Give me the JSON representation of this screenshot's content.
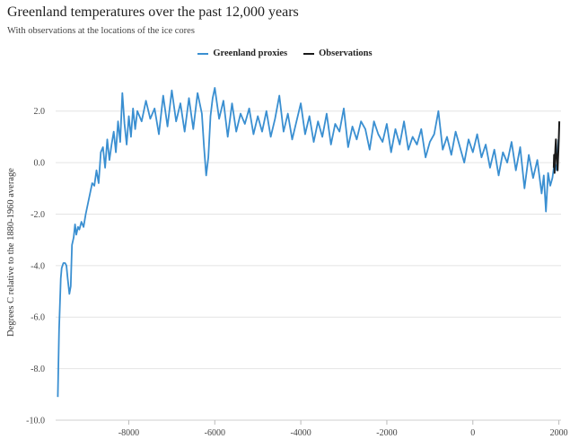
{
  "header": {
    "title": "Greenland temperatures over the past 12,000 years",
    "subtitle": "With observations at the locations of the ice cores"
  },
  "colors": {
    "proxies": "#3a8fd1",
    "observations": "#1a1a1a",
    "grid": "#e4e4e4",
    "axis": "#666666"
  },
  "chart_data": {
    "type": "line",
    "title": "Greenland temperatures over the past 12,000 years",
    "subtitle": "With observations at the locations of the ice cores",
    "xlabel": "",
    "ylabel": "Degrees C relative to the 1880-1960 average",
    "xlim": [
      -9700,
      2050
    ],
    "ylim": [
      -10,
      3
    ],
    "xticks": [
      -8000,
      -6000,
      -4000,
      -2000,
      0,
      2000
    ],
    "xtick_labels": [
      "-8000",
      "-6000",
      "-4000",
      "-2000",
      "0",
      "2000"
    ],
    "yticks": [
      2,
      0,
      -2,
      -4,
      -6,
      -8,
      -10
    ],
    "ytick_labels": [
      "2.0",
      "0.0",
      "-2.0",
      "-4.0",
      "-6.0",
      "-8.0",
      "-10.0"
    ],
    "grid": true,
    "legend": "top-center",
    "series": [
      {
        "name": "Greenland proxies",
        "x": [
          -9650,
          -9620,
          -9580,
          -9560,
          -9520,
          -9480,
          -9450,
          -9420,
          -9380,
          -9350,
          -9320,
          -9280,
          -9250,
          -9220,
          -9180,
          -9150,
          -9100,
          -9050,
          -9000,
          -8950,
          -8900,
          -8850,
          -8800,
          -8750,
          -8700,
          -8650,
          -8600,
          -8550,
          -8500,
          -8450,
          -8400,
          -8350,
          -8300,
          -8250,
          -8200,
          -8150,
          -8100,
          -8050,
          -8000,
          -7950,
          -7900,
          -7850,
          -7800,
          -7700,
          -7600,
          -7500,
          -7400,
          -7300,
          -7200,
          -7100,
          -7000,
          -6900,
          -6800,
          -6700,
          -6600,
          -6500,
          -6400,
          -6300,
          -6250,
          -6200,
          -6150,
          -6100,
          -6050,
          -6000,
          -5900,
          -5800,
          -5700,
          -5600,
          -5500,
          -5400,
          -5300,
          -5200,
          -5100,
          -5000,
          -4900,
          -4800,
          -4700,
          -4600,
          -4500,
          -4400,
          -4300,
          -4200,
          -4100,
          -4000,
          -3900,
          -3800,
          -3700,
          -3600,
          -3500,
          -3400,
          -3300,
          -3200,
          -3100,
          -3000,
          -2900,
          -2800,
          -2700,
          -2600,
          -2500,
          -2400,
          -2300,
          -2200,
          -2100,
          -2000,
          -1900,
          -1800,
          -1700,
          -1600,
          -1500,
          -1400,
          -1300,
          -1200,
          -1100,
          -1000,
          -900,
          -800,
          -700,
          -600,
          -500,
          -400,
          -300,
          -200,
          -100,
          0,
          100,
          200,
          300,
          400,
          500,
          600,
          700,
          800,
          900,
          1000,
          1100,
          1200,
          1300,
          1400,
          1500,
          1600,
          1650,
          1700,
          1750,
          1800,
          1850,
          1900,
          1950,
          1990
        ],
        "values": [
          -9.1,
          -6.5,
          -4.5,
          -4.1,
          -3.9,
          -3.9,
          -4.0,
          -4.5,
          -5.1,
          -4.8,
          -3.2,
          -2.9,
          -2.4,
          -2.8,
          -2.5,
          -2.6,
          -2.3,
          -2.5,
          -2.0,
          -1.6,
          -1.2,
          -0.8,
          -0.9,
          -0.3,
          -0.8,
          0.4,
          0.6,
          -0.2,
          0.9,
          0.1,
          0.7,
          1.2,
          0.4,
          1.6,
          0.8,
          2.7,
          1.5,
          0.7,
          1.8,
          1.0,
          2.1,
          1.3,
          2.0,
          1.6,
          2.4,
          1.7,
          2.1,
          1.1,
          2.6,
          1.4,
          2.8,
          1.6,
          2.3,
          1.2,
          2.5,
          1.3,
          2.7,
          1.9,
          0.6,
          -0.5,
          0.2,
          1.8,
          2.5,
          2.9,
          1.7,
          2.4,
          1.0,
          2.3,
          1.2,
          1.9,
          1.5,
          2.1,
          1.1,
          1.8,
          1.2,
          2.0,
          1.0,
          1.7,
          2.6,
          1.2,
          1.9,
          0.9,
          1.6,
          2.3,
          1.1,
          1.8,
          0.8,
          1.6,
          1.0,
          1.9,
          0.7,
          1.5,
          1.2,
          2.1,
          0.6,
          1.4,
          0.9,
          1.6,
          1.3,
          0.5,
          1.6,
          1.1,
          0.8,
          1.5,
          0.4,
          1.3,
          0.7,
          1.6,
          0.5,
          1.0,
          0.7,
          1.3,
          0.2,
          0.8,
          1.1,
          2.0,
          0.5,
          1.0,
          0.3,
          1.2,
          0.6,
          0.0,
          0.9,
          0.4,
          1.1,
          0.2,
          0.7,
          -0.2,
          0.5,
          -0.5,
          0.4,
          0.0,
          0.8,
          -0.3,
          0.6,
          -1.0,
          0.3,
          -0.6,
          0.1,
          -1.2,
          -0.5,
          -1.9,
          -0.4,
          -0.9,
          -0.6,
          0.0,
          -0.3,
          0.9
        ]
      },
      {
        "name": "Observations",
        "x": [
          1880,
          1890,
          1900,
          1910,
          1920,
          1930,
          1940,
          1950,
          1960,
          1970,
          1980,
          1990,
          2000,
          2010
        ],
        "values": [
          -0.2,
          0.3,
          -0.4,
          0.2,
          0.6,
          0.9,
          0.4,
          0.2,
          -0.1,
          -0.3,
          0.1,
          0.5,
          1.0,
          1.6
        ]
      }
    ]
  }
}
